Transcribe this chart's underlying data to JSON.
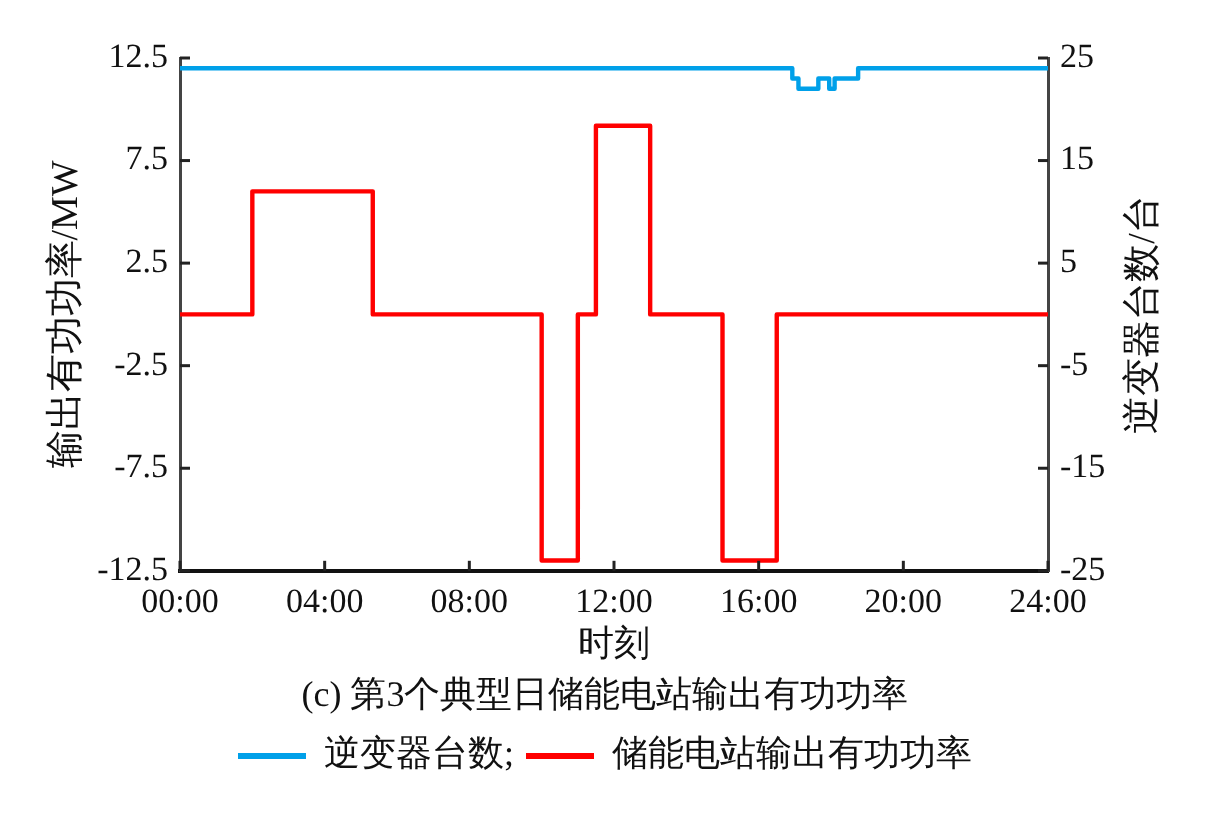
{
  "chart_data": {
    "type": "step",
    "title": "(c) 第3个典型日储能电站输出有功功率",
    "xlabel": "时刻",
    "ylabel": "输出有功功率/MW",
    "y2label": "逆变器台数/台",
    "xlim": [
      0,
      24
    ],
    "xticks": [
      {
        "value": 0,
        "label": "00:00"
      },
      {
        "value": 4,
        "label": "04:00"
      },
      {
        "value": 8,
        "label": "08:00"
      },
      {
        "value": 12,
        "label": "12:00"
      },
      {
        "value": 16,
        "label": "16:00"
      },
      {
        "value": 20,
        "label": "20:00"
      },
      {
        "value": 24,
        "label": "24:00"
      }
    ],
    "ylim": [
      -12.5,
      12.5
    ],
    "yticks": [
      -12.5,
      -7.5,
      -2.5,
      2.5,
      7.5,
      12.5
    ],
    "y2lim": [
      -25,
      25
    ],
    "y2ticks": [
      -25,
      -15,
      -5,
      5,
      15,
      25
    ],
    "series": [
      {
        "name": "逆变器台数;",
        "color": "#00a0e9",
        "axis": "y2",
        "x": [
          0,
          16.93,
          17.1,
          17.65,
          17.95,
          18.1,
          18.75,
          24
        ],
        "values": [
          24,
          23,
          22,
          23,
          22,
          23,
          24,
          24
        ]
      },
      {
        "name": "储能电站输出有功功率",
        "color": "#ff0000",
        "x": [
          0,
          2,
          5.33,
          10,
          11,
          11.5,
          13,
          15,
          16.5,
          24
        ],
        "values": [
          0,
          6,
          0,
          -12,
          0,
          9.2,
          0,
          -12,
          0,
          0
        ]
      }
    ],
    "legend": "bottom"
  }
}
